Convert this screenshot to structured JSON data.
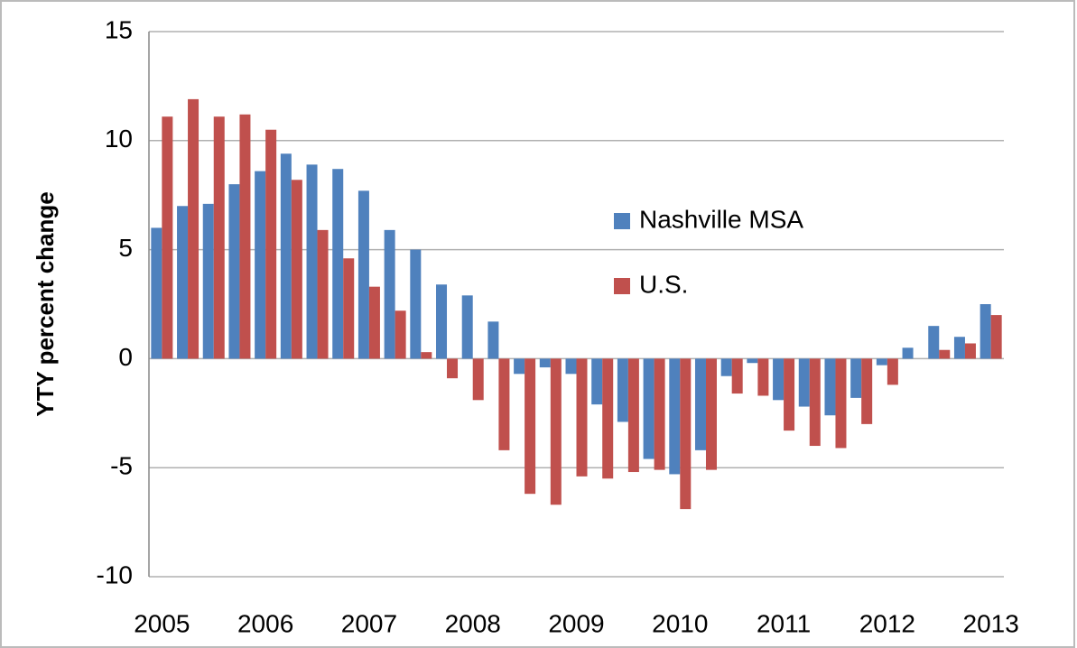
{
  "chart_data": {
    "type": "bar",
    "y_label": "YTY percent change",
    "categories": [
      "2005",
      null,
      null,
      null,
      "2006",
      null,
      null,
      null,
      "2007",
      null,
      null,
      null,
      "2008",
      null,
      null,
      null,
      "2009",
      null,
      null,
      null,
      "2010",
      null,
      null,
      null,
      "2011",
      null,
      null,
      null,
      "2012",
      null,
      null,
      null,
      "2013"
    ],
    "series": [
      {
        "name": "Nashville MSA",
        "color": "#4f81bd",
        "values": [
          6.0,
          7.0,
          7.1,
          8.0,
          8.6,
          9.4,
          8.9,
          8.7,
          7.7,
          5.9,
          5.0,
          3.4,
          2.9,
          1.7,
          -0.7,
          -0.4,
          -0.7,
          -2.1,
          -2.9,
          -4.6,
          -5.3,
          -4.2,
          -0.8,
          -0.2,
          -1.9,
          -2.2,
          -2.6,
          -1.8,
          -0.3,
          0.5,
          1.5,
          1.0,
          2.5
        ]
      },
      {
        "name": "U.S.",
        "color": "#c0504d",
        "values": [
          11.1,
          11.9,
          11.1,
          11.2,
          10.5,
          8.2,
          5.9,
          4.6,
          3.3,
          2.2,
          0.3,
          -0.9,
          -1.9,
          -4.2,
          -6.2,
          -6.7,
          -5.4,
          -5.5,
          -5.2,
          -5.1,
          -6.9,
          -5.1,
          -1.6,
          -1.7,
          -3.3,
          -4.0,
          -4.1,
          -3.0,
          -1.2,
          0,
          0.4,
          0.7,
          2.0
        ]
      }
    ],
    "ylim": [
      -10,
      15
    ],
    "yticks": [
      -10,
      -5,
      0,
      5,
      10,
      15
    ],
    "grid": true,
    "legend": "center"
  }
}
